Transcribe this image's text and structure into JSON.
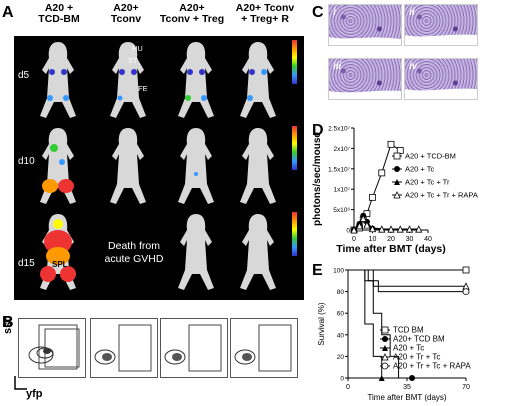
{
  "panel_letters": {
    "a": "A",
    "b": "B",
    "c": "C",
    "d": "D",
    "e": "E"
  },
  "columns": [
    {
      "line1": "A20 +",
      "line2": "TCD-BM"
    },
    {
      "line1": "A20+",
      "line2": "Tconv"
    },
    {
      "line1": "A20+",
      "line2": "Tconv + Treg"
    },
    {
      "line1": "A20+ Tconv",
      "line2": "+ Treg+ R"
    }
  ],
  "days": [
    "d5",
    "d10",
    "d15"
  ],
  "anatomy": {
    "hu": "HU",
    "st": "ST",
    "fe": "FE",
    "spl": "SPL"
  },
  "death_text": {
    "line1": "Death from",
    "line2": "acute GVHD"
  },
  "flow_axes": {
    "y": "ssc",
    "x": "yfp"
  },
  "histology_labels": [
    "i",
    "ii",
    "iii",
    "iv"
  ],
  "chart_data": [
    {
      "type": "line",
      "xlabel": "Time after BMT (days)",
      "ylabel": "photons/sec/mouse",
      "xlim": [
        0,
        40
      ],
      "ylim": [
        0,
        25000000
      ],
      "x_ticks": [
        "0",
        "10",
        "20",
        "30",
        "40"
      ],
      "y_ticks": [
        "0",
        "5x10⁶",
        "1x10⁷",
        "1.5x10⁷",
        "2x10⁷",
        "2.5x10⁷"
      ],
      "series": [
        {
          "name": "A20 + TCD-BM",
          "x": [
            0,
            3,
            5,
            7,
            10,
            15,
            20,
            25
          ],
          "y": [
            0,
            500000,
            2500000,
            4000000,
            8000000,
            14000000,
            21000000,
            19500000
          ]
        },
        {
          "name": "A20 + Tc",
          "x": [
            0,
            3,
            5,
            7,
            10
          ],
          "y": [
            0,
            1500000,
            3500000,
            2000000,
            300000
          ]
        },
        {
          "name": "A20 + Tc + Tr",
          "x": [
            0,
            3,
            5,
            7,
            10,
            15,
            20,
            25,
            30,
            35
          ],
          "y": [
            0,
            1200000,
            3000000,
            1500000,
            500000,
            300000,
            200000,
            200000,
            200000,
            200000
          ]
        },
        {
          "name": "A20 + Tc + Tr + RAPA",
          "x": [
            0,
            3,
            5,
            7,
            10,
            15,
            20,
            25,
            30,
            35
          ],
          "y": [
            0,
            1000000,
            2800000,
            1200000,
            300000,
            200000,
            200000,
            200000,
            200000,
            200000
          ]
        }
      ]
    },
    {
      "type": "line",
      "xlabel": "Time after BMT (days)",
      "ylabel": "Survival (%)",
      "xlim": [
        0,
        70
      ],
      "ylim": [
        0,
        100
      ],
      "x_ticks": [
        "0",
        "35",
        "70"
      ],
      "y_ticks": [
        "0",
        "20",
        "40",
        "60",
        "80",
        "100"
      ],
      "series": [
        {
          "name": "TCD BM",
          "x": [
            0,
            70
          ],
          "y": [
            100,
            100
          ]
        },
        {
          "name": "A20+ TCD BM",
          "x": [
            0,
            15,
            15,
            20,
            20,
            25,
            25,
            30,
            30,
            38
          ],
          "y": [
            100,
            100,
            60,
            60,
            40,
            40,
            20,
            20,
            0,
            0
          ]
        },
        {
          "name": "A20 + Tc",
          "x": [
            0,
            10,
            10,
            15,
            15,
            20,
            20
          ],
          "y": [
            100,
            100,
            50,
            50,
            20,
            20,
            0
          ]
        },
        {
          "name": "A20 + Tr + Tc",
          "x": [
            0,
            10,
            10,
            15,
            15,
            70
          ],
          "y": [
            100,
            100,
            90,
            90,
            85,
            85
          ]
        },
        {
          "name": "A20 + Tr + Tc + RAPA",
          "x": [
            0,
            12,
            12,
            18,
            18,
            70
          ],
          "y": [
            100,
            100,
            90,
            90,
            80,
            80
          ]
        }
      ]
    }
  ]
}
